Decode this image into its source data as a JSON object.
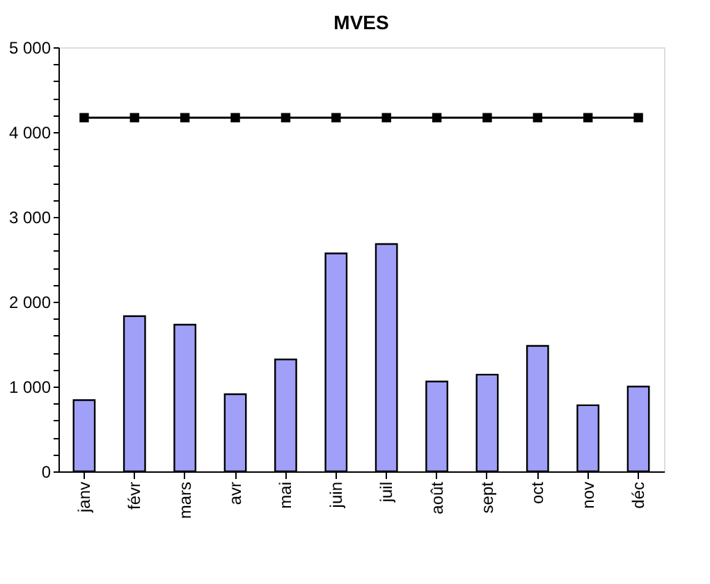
{
  "chart_data": {
    "type": "bar",
    "title": "MVES",
    "categories": [
      "janv",
      "févr",
      "mars",
      "avr",
      "mai",
      "juin",
      "juil",
      "août",
      "sept",
      "oct",
      "nov",
      "déc"
    ],
    "series": [
      {
        "color": "#a0a0f8",
        "values": [
          840,
          1830,
          1730,
          910,
          1320,
          2570,
          2680,
          1060,
          1140,
          1480,
          780,
          1000
        ]
      },
      {
        "type": "line",
        "color": "#000000",
        "marker": "square",
        "line_style": "solid",
        "values": [
          4170,
          4170,
          4170,
          4170,
          4170,
          4170,
          4170,
          4170,
          4170,
          4170,
          4170,
          4170
        ]
      }
    ],
    "ylim": [
      0,
      5000
    ],
    "yticks": [
      {
        "value": 0,
        "label": "0"
      },
      {
        "value": 200,
        "label": null
      },
      {
        "value": 400,
        "label": null
      },
      {
        "value": 600,
        "label": null
      },
      {
        "value": 800,
        "label": null
      },
      {
        "value": 1000,
        "label": "1 000"
      },
      {
        "value": 1200,
        "label": null
      },
      {
        "value": 1400,
        "label": null
      },
      {
        "value": 1600,
        "label": null
      },
      {
        "value": 1800,
        "label": null
      },
      {
        "value": 2000,
        "label": "2 000"
      },
      {
        "value": 2200,
        "label": null
      },
      {
        "value": 2400,
        "label": null
      },
      {
        "value": 2600,
        "label": null
      },
      {
        "value": 2800,
        "label": null
      },
      {
        "value": 3000,
        "label": "3 000"
      },
      {
        "value": 3200,
        "label": null
      },
      {
        "value": 3400,
        "label": null
      },
      {
        "value": 3600,
        "label": null
      },
      {
        "value": 3800,
        "label": null
      },
      {
        "value": 4000,
        "label": "4 000"
      },
      {
        "value": 4200,
        "label": null
      },
      {
        "value": 4400,
        "label": null
      },
      {
        "value": 4600,
        "label": null
      },
      {
        "value": 4800,
        "label": null
      },
      {
        "value": 5000,
        "label": "5 000"
      }
    ],
    "grid": false
  }
}
